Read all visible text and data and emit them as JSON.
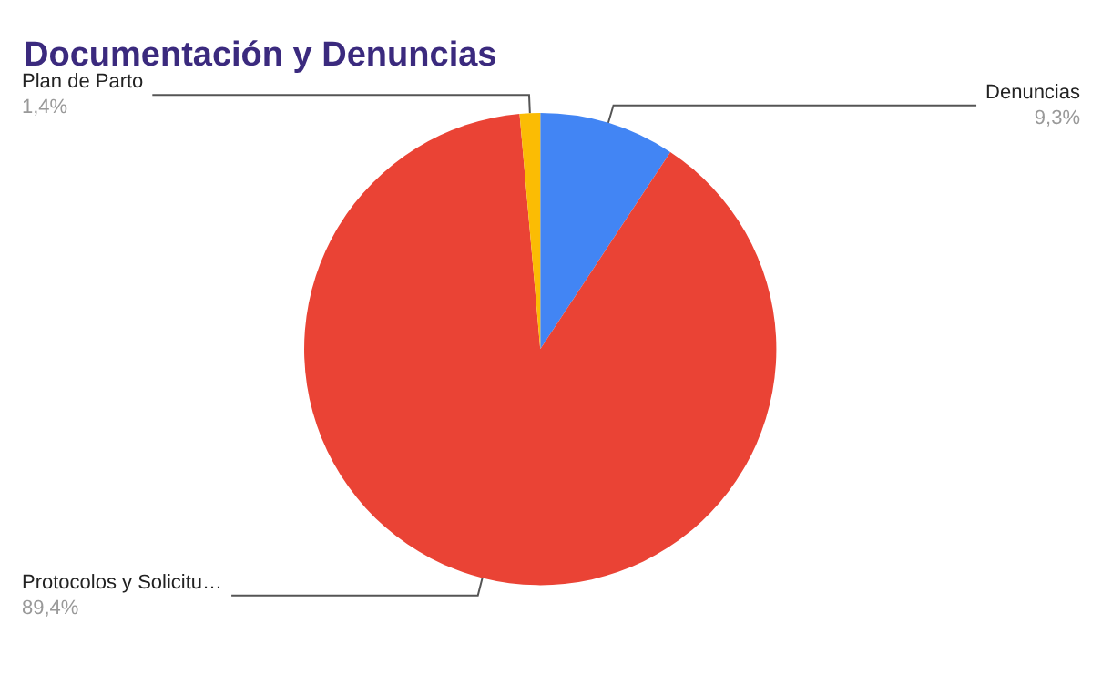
{
  "chart_data": {
    "type": "pie",
    "title": "Documentación y Denuncias",
    "categories": [
      "Denuncias",
      "Protocolos y Solicitu…",
      "Plan de Parto"
    ],
    "values": [
      9.3,
      89.4,
      1.4
    ],
    "colors": [
      "#4285f4",
      "#ea4335",
      "#fbbc04"
    ],
    "value_labels": [
      "9,3%",
      "89,4%",
      "1,4%"
    ],
    "legend": false
  }
}
